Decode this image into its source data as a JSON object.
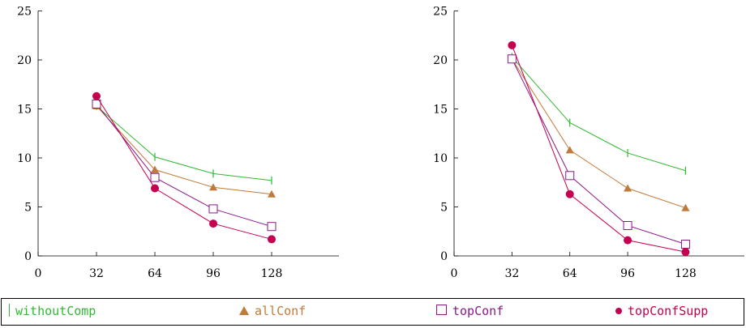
{
  "colors": {
    "withoutComp": "#33b833",
    "allConf": "#c07a3a",
    "topConf": "#8a1a8a",
    "topConfSupp": "#c4004f"
  },
  "legend": [
    {
      "key": "withoutComp",
      "label": "withoutComp",
      "marker": "bar"
    },
    {
      "key": "allConf",
      "label": "allConf",
      "marker": "triangle"
    },
    {
      "key": "topConf",
      "label": "topConf",
      "marker": "square"
    },
    {
      "key": "topConfSupp",
      "label": "topConfSupp",
      "marker": "circle"
    }
  ],
  "chart_data": [
    {
      "type": "line",
      "x": [
        32,
        64,
        96,
        128
      ],
      "xlim": [
        0,
        160
      ],
      "ylim": [
        0,
        25
      ],
      "xticks": [
        0,
        32,
        64,
        96,
        128
      ],
      "yticks": [
        0,
        5,
        10,
        15,
        20,
        25
      ],
      "series": [
        {
          "key": "withoutComp",
          "name": "withoutComp",
          "values": [
            15.3,
            10.1,
            8.4,
            7.7
          ]
        },
        {
          "key": "allConf",
          "name": "allConf",
          "values": [
            15.3,
            8.8,
            7.0,
            6.3
          ]
        },
        {
          "key": "topConf",
          "name": "topConf",
          "values": [
            15.5,
            8.0,
            4.8,
            3.0
          ]
        },
        {
          "key": "topConfSupp",
          "name": "topConfSupp",
          "values": [
            16.3,
            6.9,
            3.3,
            1.7
          ]
        }
      ]
    },
    {
      "type": "line",
      "x": [
        32,
        64,
        96,
        128
      ],
      "xlim": [
        0,
        160
      ],
      "ylim": [
        0,
        25
      ],
      "xticks": [
        0,
        32,
        64,
        96,
        128
      ],
      "yticks": [
        0,
        5,
        10,
        15,
        20,
        25
      ],
      "series": [
        {
          "key": "withoutComp",
          "name": "withoutComp",
          "values": [
            20.3,
            13.6,
            10.5,
            8.7
          ]
        },
        {
          "key": "allConf",
          "name": "allConf",
          "values": [
            20.1,
            10.8,
            6.9,
            4.9
          ]
        },
        {
          "key": "topConf",
          "name": "topConf",
          "values": [
            20.1,
            8.2,
            3.1,
            1.2
          ]
        },
        {
          "key": "topConfSupp",
          "name": "topConfSupp",
          "values": [
            21.5,
            6.3,
            1.6,
            0.4
          ]
        }
      ]
    }
  ]
}
